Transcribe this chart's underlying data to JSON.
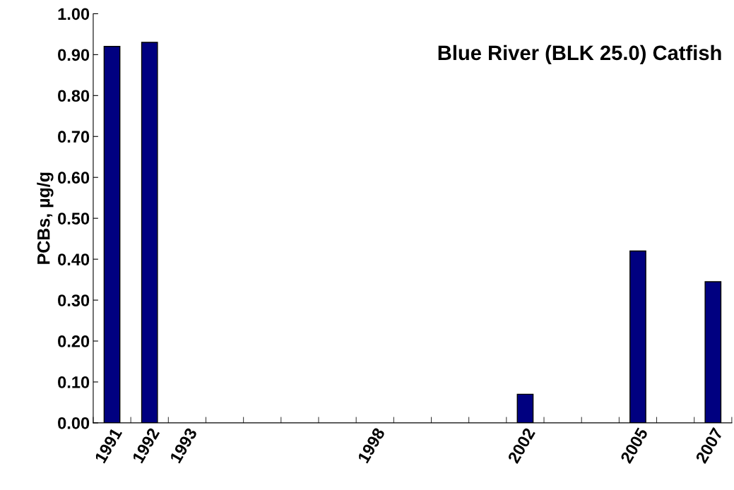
{
  "chart_data": {
    "type": "bar",
    "title": "Blue River (BLK 25.0) Catfish",
    "ylabel": "PCBs, µg/g",
    "categories": [
      "1991",
      "1992",
      "1993",
      null,
      null,
      null,
      null,
      "1998",
      null,
      null,
      null,
      "2002",
      null,
      null,
      "2005",
      null,
      "2007"
    ],
    "values": [
      0.92,
      0.93,
      null,
      null,
      null,
      null,
      null,
      null,
      null,
      null,
      null,
      0.07,
      null,
      null,
      0.42,
      null,
      0.345
    ],
    "color": "#000080",
    "ylim": [
      0,
      1
    ],
    "yticks": [
      {
        "value": 0,
        "label": "0.00"
      },
      {
        "value": 0.1,
        "label": "0.10"
      },
      {
        "value": 0.2,
        "label": "0.20"
      },
      {
        "value": 0.3,
        "label": "0.30"
      },
      {
        "value": 0.4,
        "label": "0.40"
      },
      {
        "value": 0.5,
        "label": "0.50"
      },
      {
        "value": 0.6,
        "label": "0.60"
      },
      {
        "value": 0.7,
        "label": "0.70"
      },
      {
        "value": 0.8,
        "label": "0.80"
      },
      {
        "value": 0.9,
        "label": "0.90"
      },
      {
        "value": 1,
        "label": "1.00"
      }
    ],
    "grid": false,
    "legend": false
  }
}
